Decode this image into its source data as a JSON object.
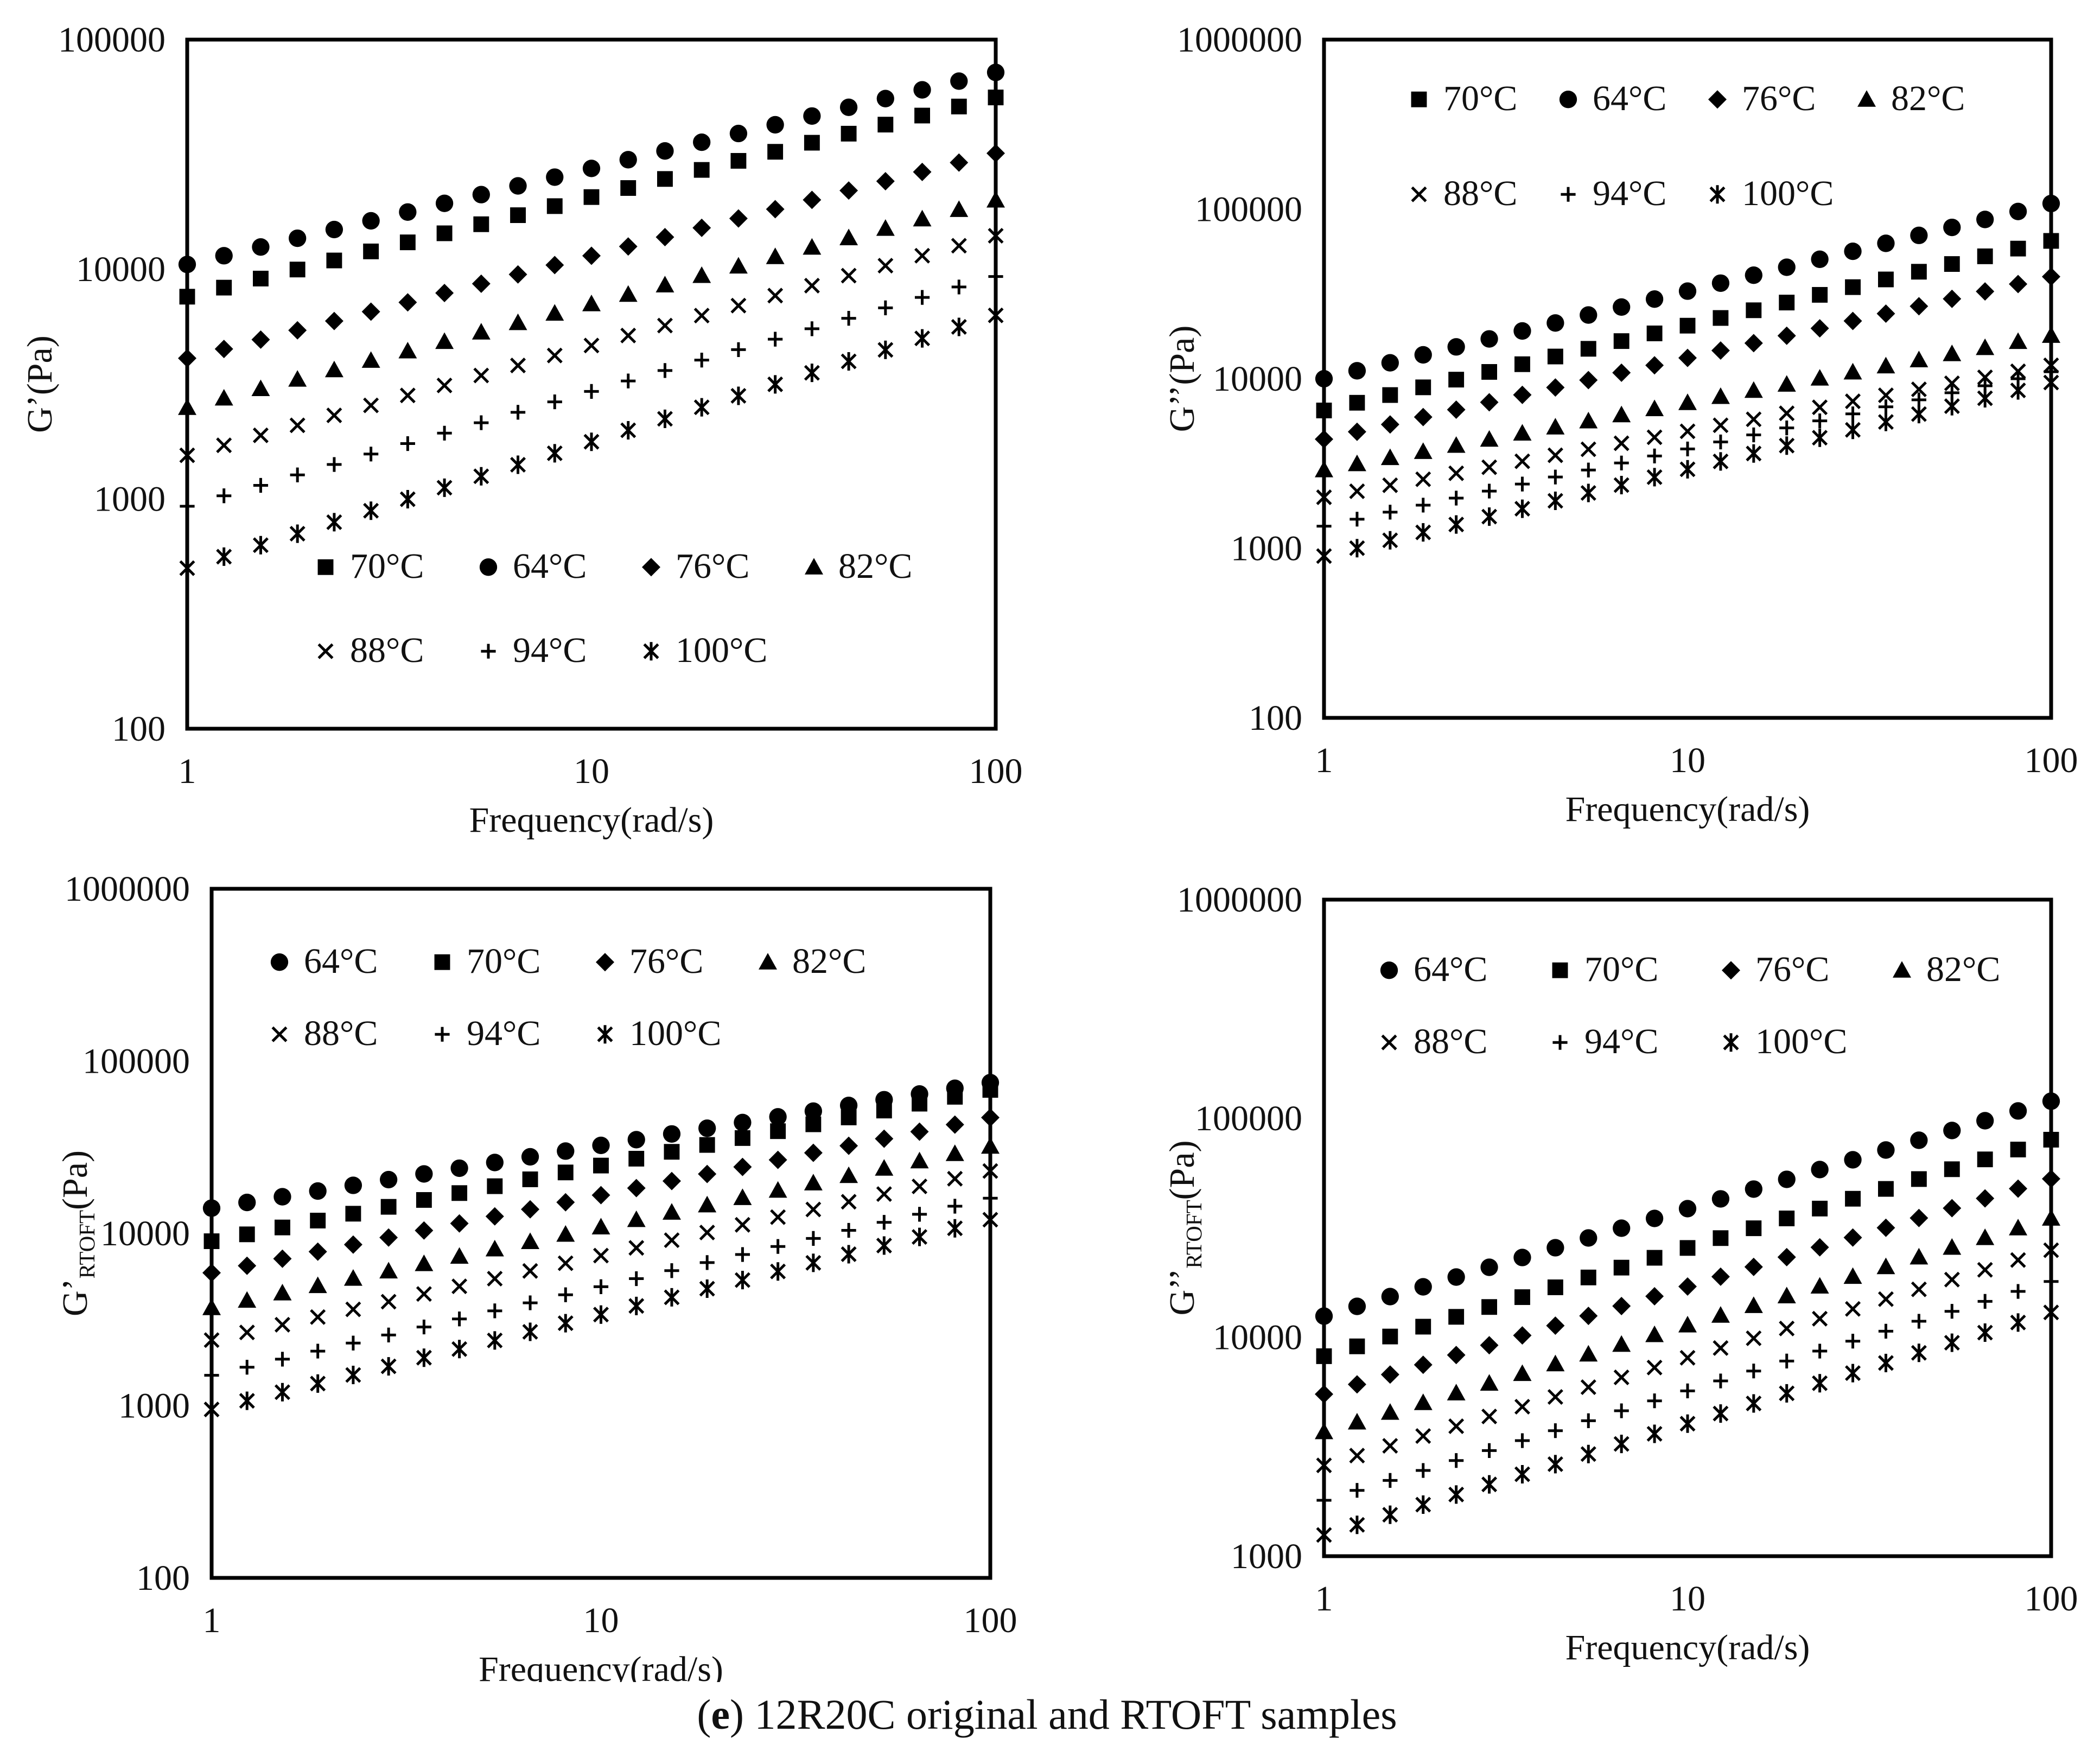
{
  "caption": {
    "label": "e",
    "open": "(",
    "close": ")",
    "text": "12R20C original and RTOFT samples"
  },
  "chart_data": [
    {
      "type": "scatter",
      "panel": "top-left",
      "ylabel": "G’(Pa)",
      "xlabel": "Frequency(rad/s)",
      "xscale": "log",
      "yscale": "log",
      "xlim": [
        1,
        100
      ],
      "ylim": [
        100,
        100000
      ],
      "xticks": [
        "1",
        "10",
        "100"
      ],
      "yticks": [
        "100",
        "1000",
        "10000",
        "100000"
      ],
      "legend": [
        "70°C",
        "64°C",
        "76°C",
        "82°C",
        "88°C",
        "94°C",
        "100°C"
      ],
      "legend_position": "lower-center",
      "series": [
        {
          "name": "70°C",
          "marker": "square",
          "y_at_1": 7600,
          "y_at_100": 56000
        },
        {
          "name": "64°C",
          "marker": "circle",
          "y_at_1": 10500,
          "y_at_100": 72000
        },
        {
          "name": "76°C",
          "marker": "diamond",
          "y_at_1": 4100,
          "y_at_100": 32000
        },
        {
          "name": "82°C",
          "marker": "triangle",
          "y_at_1": 2500,
          "y_at_100": 20000
        },
        {
          "name": "88°C",
          "marker": "x",
          "y_at_1": 1550,
          "y_at_100": 14000
        },
        {
          "name": "94°C",
          "marker": "plus",
          "y_at_1": 930,
          "y_at_100": 9300
        },
        {
          "name": "100°C",
          "marker": "star",
          "y_at_1": 500,
          "y_at_100": 6300
        }
      ]
    },
    {
      "type": "scatter",
      "panel": "top-right",
      "ylabel": "G’’(Pa)",
      "xlabel": "Frequency(rad/s)",
      "xscale": "log",
      "yscale": "log",
      "xlim": [
        1,
        100
      ],
      "ylim": [
        100,
        1000000
      ],
      "xticks": [
        "1",
        "10",
        "100"
      ],
      "yticks": [
        "100",
        "1000",
        "10000",
        "100000",
        "1000000"
      ],
      "legend": [
        "70°C",
        "64°C",
        "76°C",
        "82°C",
        "88°C",
        "94°C",
        "100°C"
      ],
      "legend_position": "top",
      "series": [
        {
          "name": "70°C",
          "marker": "square",
          "y_at_1": 6500,
          "y_at_100": 65000
        },
        {
          "name": "64°C",
          "marker": "circle",
          "y_at_1": 10000,
          "y_at_100": 108000
        },
        {
          "name": "76°C",
          "marker": "diamond",
          "y_at_1": 4400,
          "y_at_100": 40000
        },
        {
          "name": "82°C",
          "marker": "triangle",
          "y_at_1": 2900,
          "y_at_100": 18000
        },
        {
          "name": "88°C",
          "marker": "x",
          "y_at_1": 2000,
          "y_at_100": 12000
        },
        {
          "name": "94°C",
          "marker": "plus",
          "y_at_1": 1350,
          "y_at_100": 11000
        },
        {
          "name": "100°C",
          "marker": "star",
          "y_at_1": 900,
          "y_at_100": 9500
        }
      ]
    },
    {
      "type": "scatter",
      "panel": "bottom-left",
      "ylabel": "G’",
      "ylabel_sub": "RTOFT",
      "ylabel_unit": "(Pa)",
      "xlabel": "Frequency(rad/s)",
      "xscale": "log",
      "yscale": "log",
      "xlim": [
        1,
        100
      ],
      "ylim": [
        100,
        1000000
      ],
      "xticks": [
        "1",
        "10",
        "100"
      ],
      "yticks": [
        "100",
        "1000",
        "10000",
        "100000",
        "1000000"
      ],
      "legend": [
        "64°C",
        "70°C",
        "76°C",
        "82°C",
        "88°C",
        "94°C",
        "100°C"
      ],
      "legend_position": "top",
      "series": [
        {
          "name": "64°C",
          "marker": "circle",
          "y_at_1": 14000,
          "y_at_100": 75000
        },
        {
          "name": "70°C",
          "marker": "square",
          "y_at_1": 9000,
          "y_at_100": 68000
        },
        {
          "name": "76°C",
          "marker": "diamond",
          "y_at_1": 5900,
          "y_at_100": 47000
        },
        {
          "name": "82°C",
          "marker": "triangle",
          "y_at_1": 3700,
          "y_at_100": 32000
        },
        {
          "name": "88°C",
          "marker": "x",
          "y_at_1": 2400,
          "y_at_100": 23000
        },
        {
          "name": "94°C",
          "marker": "plus",
          "y_at_1": 1500,
          "y_at_100": 16000
        },
        {
          "name": "100°C",
          "marker": "star",
          "y_at_1": 950,
          "y_at_100": 12000
        }
      ]
    },
    {
      "type": "scatter",
      "panel": "bottom-right",
      "ylabel": "G’’",
      "ylabel_sub": "RTOFT",
      "ylabel_unit": "(Pa)",
      "xlabel": "Frequency(rad/s)",
      "xscale": "log",
      "yscale": "log",
      "xlim": [
        1,
        100
      ],
      "ylim": [
        1000,
        1000000
      ],
      "xticks": [
        "1",
        "10",
        "100"
      ],
      "yticks": [
        "1000",
        "10000",
        "100000",
        "1000000"
      ],
      "legend": [
        "64°C",
        "70°C",
        "76°C",
        "82°C",
        "88°C",
        "94°C",
        "100°C"
      ],
      "legend_position": "top",
      "series": [
        {
          "name": "64°C",
          "marker": "circle",
          "y_at_1": 12500,
          "y_at_100": 120000
        },
        {
          "name": "70°C",
          "marker": "square",
          "y_at_1": 8200,
          "y_at_100": 80000
        },
        {
          "name": "76°C",
          "marker": "diamond",
          "y_at_1": 5500,
          "y_at_100": 53000
        },
        {
          "name": "82°C",
          "marker": "triangle",
          "y_at_1": 3700,
          "y_at_100": 35000
        },
        {
          "name": "88°C",
          "marker": "x",
          "y_at_1": 2600,
          "y_at_100": 25000
        },
        {
          "name": "94°C",
          "marker": "plus",
          "y_at_1": 1800,
          "y_at_100": 18000
        },
        {
          "name": "100°C",
          "marker": "star",
          "y_at_1": 1250,
          "y_at_100": 13000
        }
      ]
    }
  ]
}
